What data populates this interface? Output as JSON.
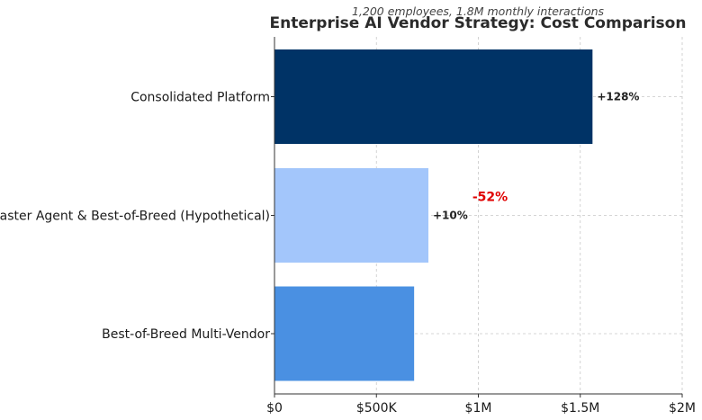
{
  "chart_data": {
    "type": "bar",
    "orientation": "horizontal",
    "title": "Enterprise AI Vendor Strategy: Cost Comparison",
    "subtitle": "1,200 employees, 1.8M monthly interactions",
    "xlabel": "",
    "ylabel": "",
    "xlim": [
      0,
      2000000
    ],
    "x_ticks": [
      0,
      500000,
      1000000,
      1500000,
      2000000
    ],
    "x_tick_labels": [
      "$0",
      "$500K",
      "$1M",
      "$1.5M",
      "$2M"
    ],
    "grid": true,
    "categories": [
      "Best-of-Breed Multi-Vendor",
      "Master Agent & Best-of-Breed (Hypothetical)",
      "Consolidated Platform"
    ],
    "values": [
      685000,
      755000,
      1560000
    ],
    "data_labels": [
      "",
      "+10%",
      "+128%"
    ],
    "colors": [
      "#4a90e2",
      "#a3c6fb",
      "#003366"
    ],
    "annotation": {
      "text": "-52%",
      "color": "#e00000",
      "x": 1000000,
      "category_index": 1
    }
  }
}
